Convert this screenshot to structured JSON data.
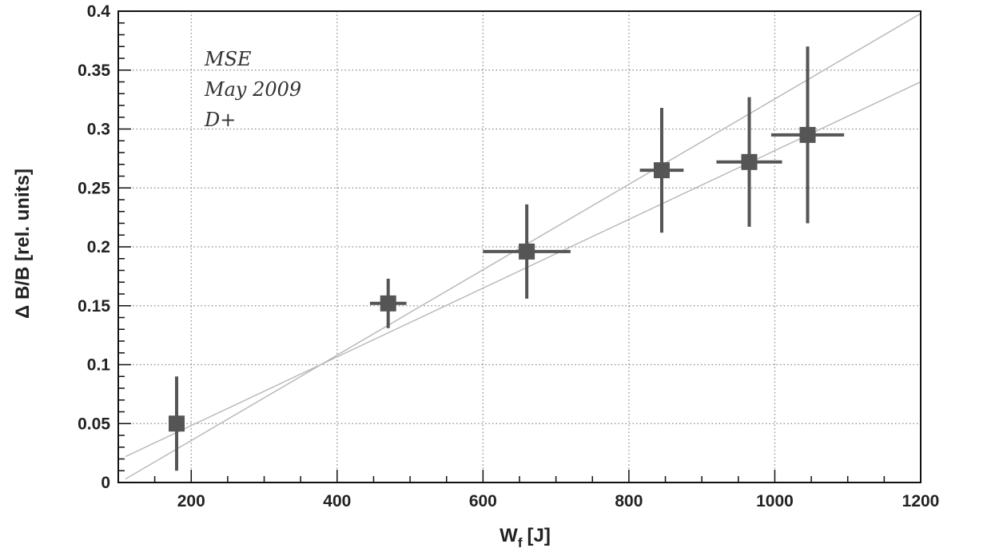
{
  "chart_data": {
    "type": "scatter",
    "title": "",
    "xlabel": "W",
    "xlabel_sub": "f",
    "xlabel_unit": "[J]",
    "ylabel": "Δ B/B [rel. units]",
    "xlim": [
      100,
      1200
    ],
    "ylim": [
      0,
      0.4
    ],
    "x_ticks": [
      200,
      400,
      600,
      800,
      1000,
      1200
    ],
    "x_tick_labels": [
      "200",
      "400",
      "600",
      "800",
      "1000",
      "1200"
    ],
    "y_ticks": [
      0,
      0.05,
      0.1,
      0.15,
      0.2,
      0.25,
      0.3,
      0.35,
      0.4
    ],
    "y_tick_labels": [
      "0",
      "0.05",
      "0.1",
      "0.15",
      "0.2",
      "0.25",
      "0.3",
      "0.35",
      "0.4"
    ],
    "grid": true,
    "legend": "none",
    "annotation_lines": [
      "MSE",
      "May 2009",
      "D+"
    ],
    "series": [
      {
        "points": [
          {
            "x": 180,
            "y": 0.05,
            "x_err": 0,
            "y_err": 0.04
          },
          {
            "x": 470,
            "y": 0.152,
            "x_err": 25,
            "y_err": 0.021
          },
          {
            "x": 660,
            "y": 0.196,
            "x_err": 60,
            "y_err": 0.04
          },
          {
            "x": 845,
            "y": 0.265,
            "x_err": 30,
            "y_err": 0.053
          },
          {
            "x": 965,
            "y": 0.272,
            "x_err": 45,
            "y_err": 0.055
          },
          {
            "x": 1045,
            "y": 0.295,
            "x_err": 50,
            "y_err": 0.075
          }
        ]
      }
    ],
    "fit_lines": [
      {
        "x": [
          110,
          1200
        ],
        "y": [
          0.003,
          0.398
        ]
      },
      {
        "x": [
          110,
          1200
        ],
        "y": [
          0.022,
          0.34
        ]
      }
    ],
    "colors": {
      "marker": "#555555",
      "fit": "#b5b5b5",
      "grid": "#888888",
      "axis": "#111111"
    }
  }
}
